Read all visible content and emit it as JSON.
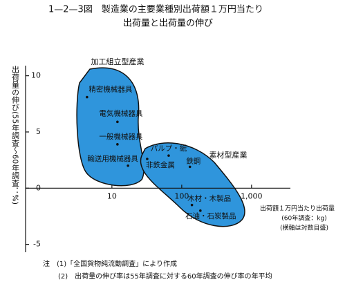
{
  "chart_data": {
    "type": "scatter",
    "title": "1—2—3図　製造業の主要業種別出荷額１万円当たり",
    "subtitle": "出荷量と出荷量の伸び",
    "y_label": "出荷量の伸び(55年調査〜60年調査：%)",
    "x_label": [
      "出荷額１万円当たり出荷量",
      "(60年調査：kg)",
      "(横軸は対数目盛)"
    ],
    "groups": [
      "加工組立型産業",
      "素材型産業"
    ],
    "notes": [
      "注　(1)「全国貨物純流動調査」により作成",
      "(2)　出荷量の伸び率は55年調査に対する60年調査の伸び率の年平均"
    ],
    "x_log": true,
    "xlim": [
      0.58,
      3600
    ],
    "xticks": [
      10,
      100,
      {
        "value": 1000,
        "label": "1,000"
      }
    ],
    "ylim": [
      -5.7,
      10.9
    ],
    "yticks": [
      -5,
      0,
      5,
      10
    ],
    "color": "#2f95dc",
    "points": {
      "labels": [
        "精密機械器具",
        "電気機械器具",
        "一般機械器具",
        "輸送用機械器具",
        "非鉄金属",
        "パルプ・紙",
        "鉄鋼",
        "木材・木製品",
        "石油・石炭製品"
      ],
      "x": [
        4.4,
        12,
        12,
        17,
        32,
        65,
        131,
        140,
        185
      ],
      "y": [
        8.1,
        5.9,
        3.9,
        2.0,
        2.6,
        2.9,
        1.9,
        -1.5,
        -2.0
      ]
    }
  }
}
